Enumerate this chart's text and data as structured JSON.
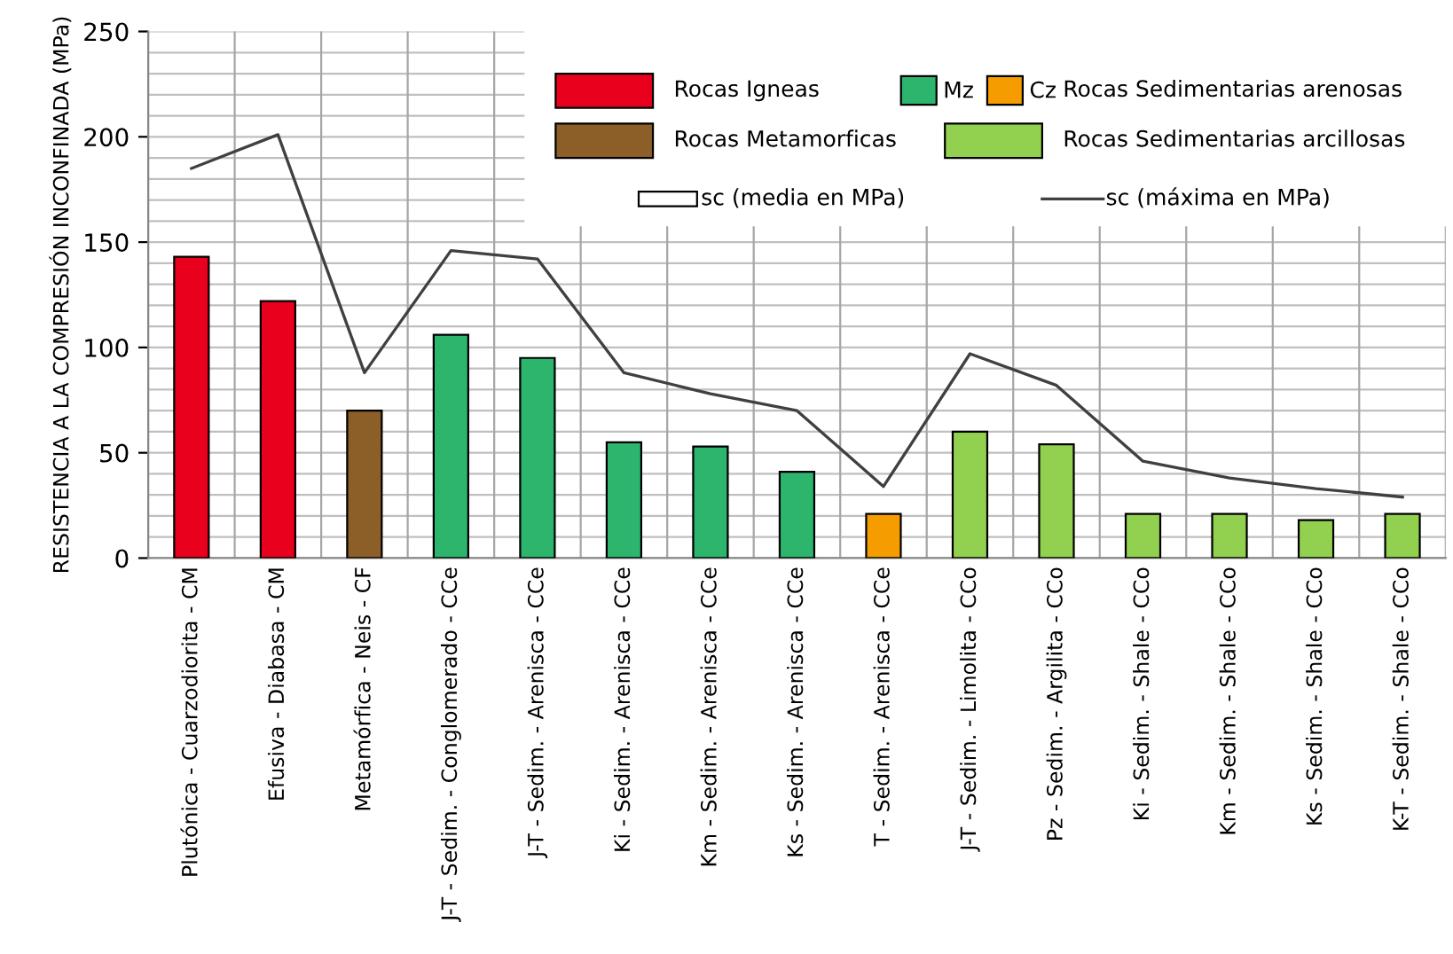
{
  "chart_data": {
    "type": "bar",
    "ylabel": "RESISTENCIA A LA COMPRESIÓN INCONFINADA (MPa)",
    "categories": [
      "Plutónica - Cuarzodiorita - CM",
      "Efusiva - Diabasa - CM",
      "Metamórfica - Neis - CF",
      "J-T - Sedim. - Conglomerado - CCe",
      "J-T - Sedim. - Arenisca - CCe",
      "Ki - Sedim. - Arenisca - CCe",
      "Km - Sedim. - Arenisca - CCe",
      "Ks - Sedim. - Arenisca - CCe",
      "T - Sedim. - Arenisca - CCe",
      "J-T - Sedim. - Limolita - CCo",
      "Pz - Sedim. - Argilita - CCo",
      "Ki - Sedim. - Shale - CCo",
      "Km - Sedim. - Shale - CCo",
      "Ks - Sedim. - Shale - CCo",
      "K-T - Sedim. - Shale - CCo"
    ],
    "series": [
      {
        "name": "Rocas Igneas",
        "color": "#e8001c",
        "values": [
          143,
          122,
          null,
          null,
          null,
          null,
          null,
          null,
          null,
          null,
          null,
          null,
          null,
          null,
          null
        ]
      },
      {
        "name": "Rocas Metamorficas",
        "color": "#8c5e28",
        "values": [
          null,
          null,
          70,
          null,
          null,
          null,
          null,
          null,
          null,
          null,
          null,
          null,
          null,
          null,
          null
        ]
      },
      {
        "name": "Mz",
        "color": "#2db56e",
        "values": [
          null,
          null,
          null,
          106,
          95,
          55,
          53,
          41,
          null,
          null,
          null,
          null,
          null,
          null,
          null
        ]
      },
      {
        "name": "Cz",
        "color": "#f59c00",
        "values": [
          null,
          null,
          null,
          null,
          null,
          null,
          null,
          null,
          21,
          null,
          null,
          null,
          null,
          null,
          null
        ]
      },
      {
        "name": "Rocas Sedimentarias arcillosas",
        "color": "#92d050",
        "values": [
          null,
          null,
          null,
          null,
          null,
          null,
          null,
          null,
          null,
          60,
          54,
          21,
          21,
          18,
          21
        ]
      },
      {
        "name": "sc (máxima en MPa)",
        "type": "line",
        "color": "#404040",
        "values": [
          185,
          201,
          88,
          146,
          142,
          88,
          78,
          70,
          34,
          97,
          82,
          46,
          38,
          33,
          29
        ]
      }
    ],
    "annotations": [
      "Rocas Sedimentarias arenosas",
      "sc (media en MPa)"
    ],
    "ylim": [
      0,
      250
    ],
    "yticks": [
      0,
      50,
      100,
      150,
      200,
      250
    ],
    "grid": true,
    "legend": "top right"
  }
}
